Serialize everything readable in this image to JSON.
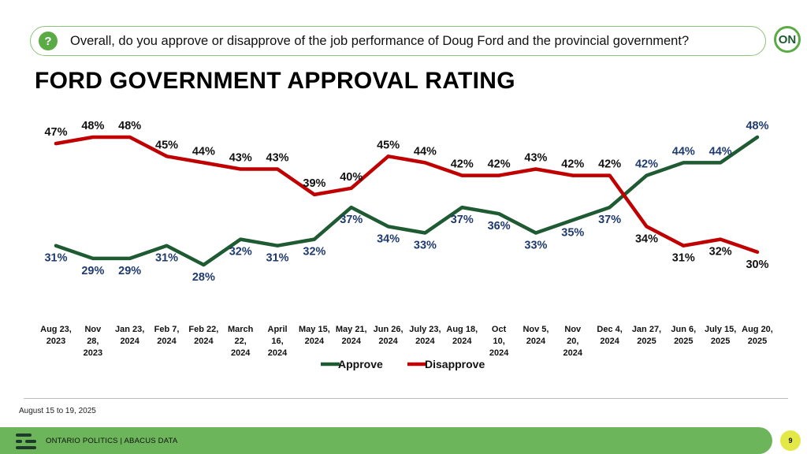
{
  "question": "Overall, do you approve or disapprove of the job performance of Doug Ford and the provincial government?",
  "question_icon": "?",
  "logo_text": "ON",
  "title": "FORD GOVERNMENT APPROVAL RATING",
  "footnote": "August 15 to 19, 2025",
  "footer": {
    "text": "ONTARIO POLITICS  |  ABACUS DATA",
    "page": "9"
  },
  "chart_data": {
    "type": "line",
    "categories": [
      "Aug 23,\n2023",
      "Nov\n28,\n2023",
      "Jan 23,\n2024",
      "Feb 7,\n2024",
      "Feb 22,\n2024",
      "March\n22,\n2024",
      "April\n16,\n2024",
      "May 15,\n2024",
      "May 21,\n2024",
      "Jun 26,\n2024",
      "July 23,\n2024",
      "Aug 18,\n2024",
      "Oct\n10,\n2024",
      "Nov 5,\n2024",
      "Nov\n20,\n2024",
      "Dec 4,\n2024",
      "Jan 27,\n2025",
      "Jun 6,\n2025",
      "July 15,\n2025",
      "Aug 20,\n2025"
    ],
    "series": [
      {
        "name": "Approve",
        "color": "#1e5a32",
        "label_color": "#1f3a6e",
        "values": [
          31,
          29,
          29,
          31,
          28,
          32,
          31,
          32,
          37,
          34,
          33,
          37,
          36,
          33,
          35,
          37,
          42,
          44,
          44,
          48
        ]
      },
      {
        "name": "Disapprove",
        "color": "#c00000",
        "label_color": "#111111",
        "values": [
          47,
          48,
          48,
          45,
          44,
          43,
          43,
          39,
          40,
          45,
          44,
          42,
          42,
          43,
          42,
          42,
          34,
          31,
          32,
          30
        ]
      }
    ],
    "value_suffix": "%",
    "legend": "bottom-center"
  }
}
